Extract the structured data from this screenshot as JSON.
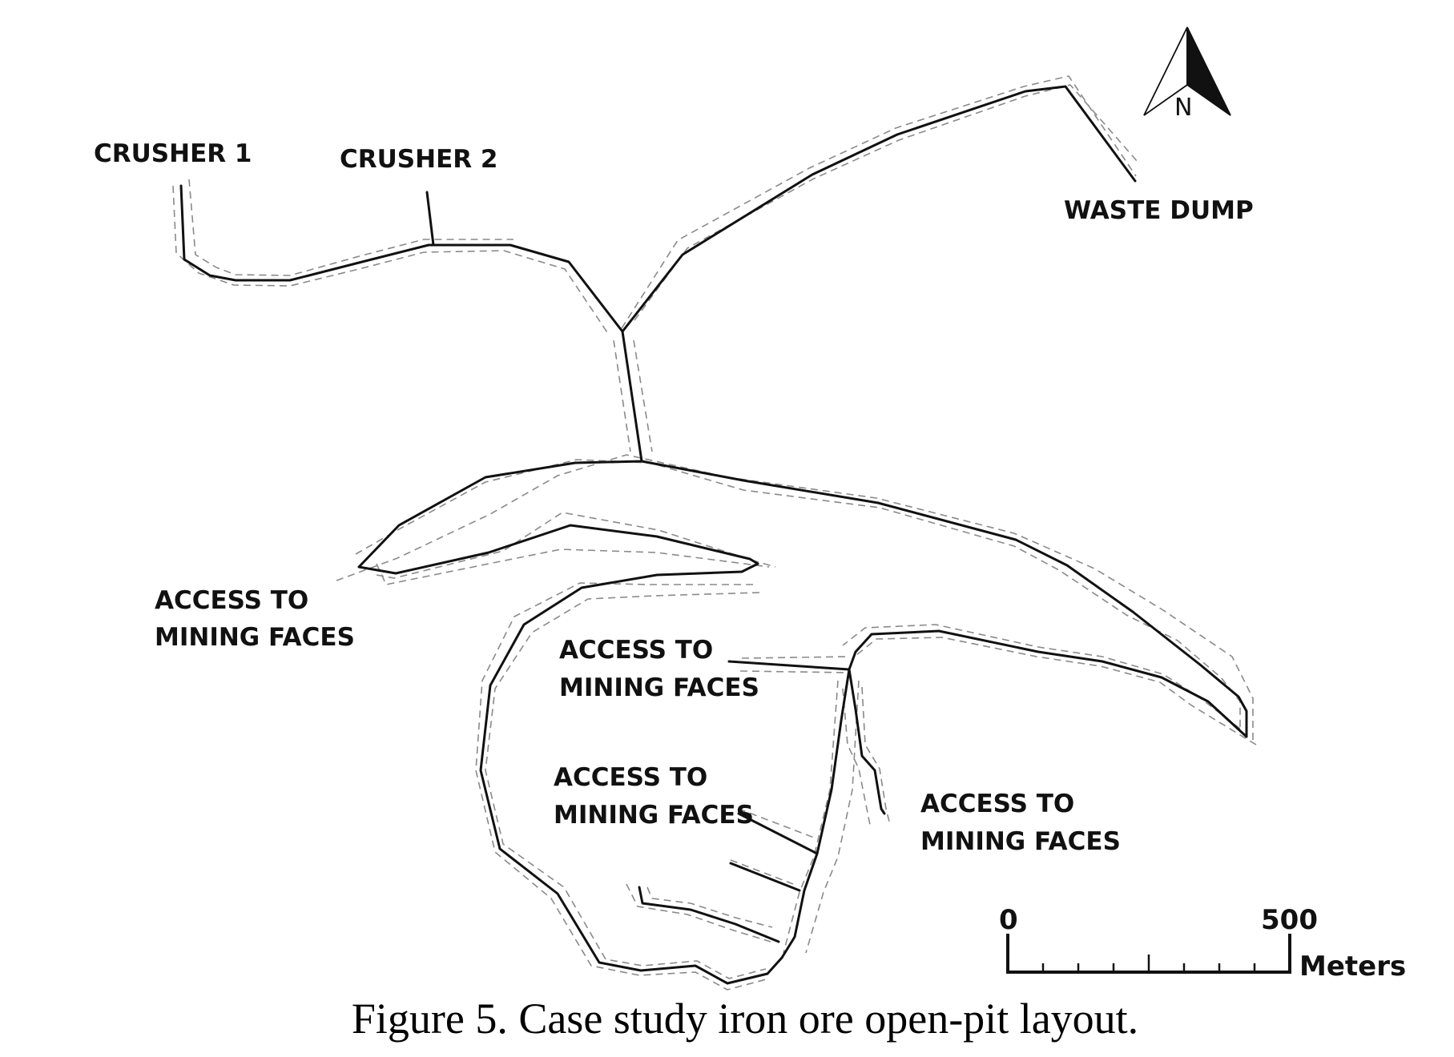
{
  "labels": {
    "crusher1": "CRUSHER 1",
    "crusher2": "CRUSHER 2",
    "waste_dump": "WASTE DUMP",
    "access_line1": "ACCESS TO",
    "access_line2": "MINING FACES"
  },
  "north_arrow": {
    "letter": "N"
  },
  "scale_bar": {
    "start": "0",
    "end": "500",
    "unit": "Meters"
  },
  "caption": "Figure 5. Case study iron ore open-pit layout.",
  "colors": {
    "road": "#111111",
    "road_edge": "#8a8a8a",
    "background": "#ffffff"
  }
}
